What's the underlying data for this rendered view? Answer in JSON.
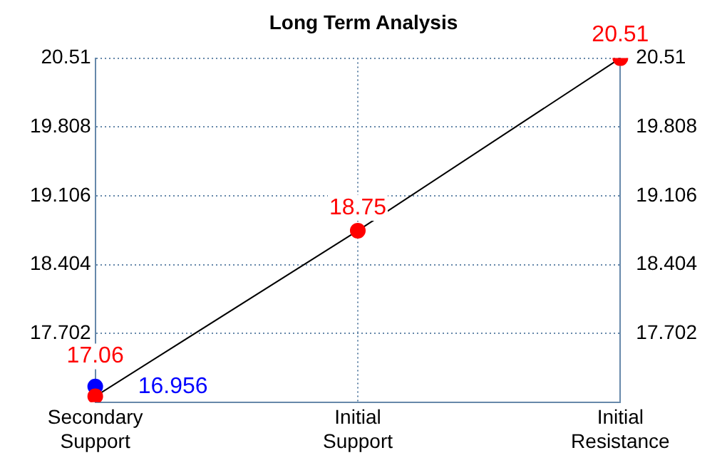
{
  "chart_data": {
    "type": "line",
    "title": "Long Term Analysis",
    "categories": [
      "Secondary\nSupport",
      "Initial\nSupport",
      "Initial\nResistance"
    ],
    "series": [
      {
        "color": "#ff0000",
        "values": [
          17.06,
          18.75,
          20.51
        ],
        "value_labels": [
          "17.06",
          "18.75",
          "20.51"
        ]
      },
      {
        "type": "scatter",
        "color": "#0000ff",
        "values": [
          17.16,
          null,
          null
        ]
      }
    ],
    "ylim": [
      17.0,
      20.51
    ],
    "yticks": [
      17.702,
      18.404,
      19.106,
      19.808,
      20.51
    ],
    "y2lim": [
      17.0,
      20.51
    ],
    "y2ticks": [
      17.702,
      18.404,
      19.106,
      19.808,
      20.51
    ],
    "grid": true,
    "marker": "circle",
    "legend": false,
    "annotations": [
      "16.956"
    ]
  }
}
